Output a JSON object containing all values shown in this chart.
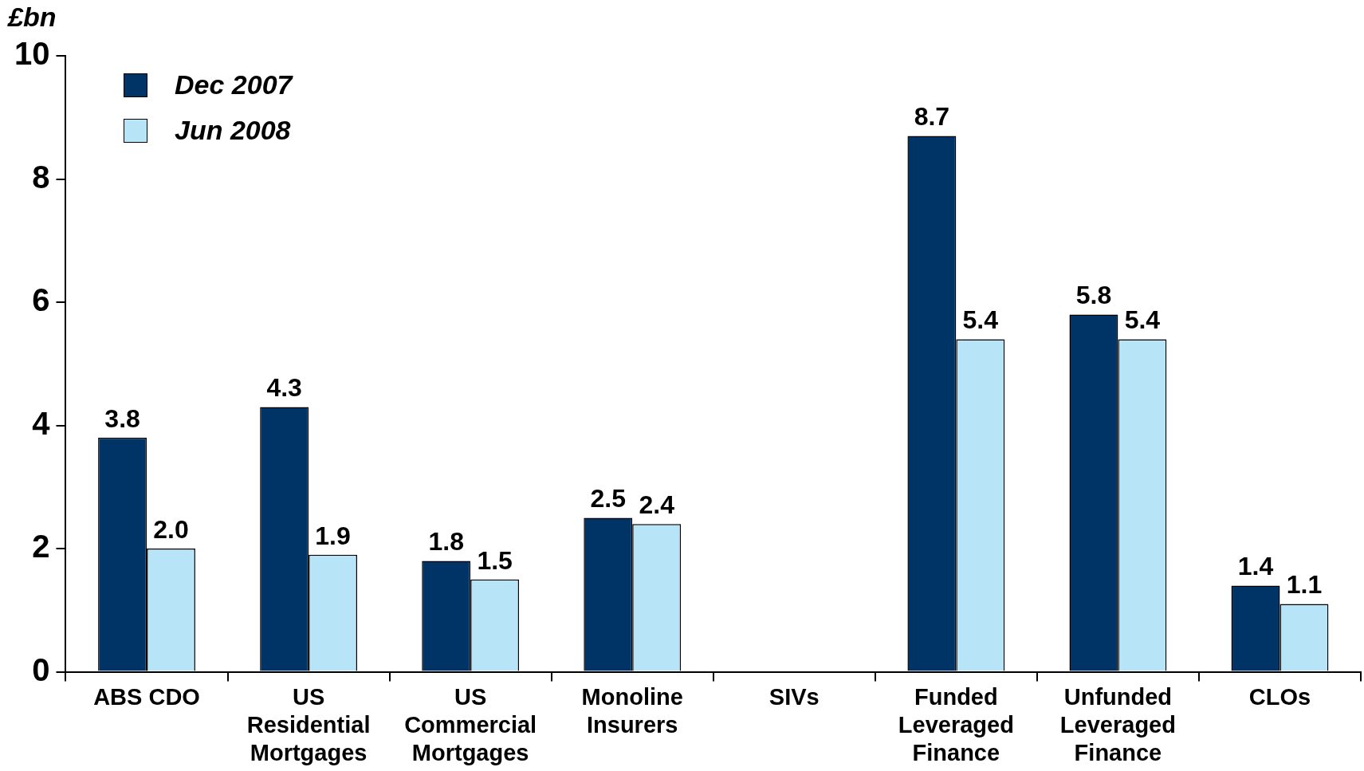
{
  "chart_data": {
    "type": "bar",
    "ylabel": "£bn",
    "categories": [
      "ABS CDO",
      "US\nResidential\nMortgages",
      "US\nCommercial\nMortgages",
      "Monoline\nInsurers",
      "SIVs",
      "Funded\nLeveraged\nFinance",
      "Unfunded\nLeveraged\nFinance",
      "CLOs"
    ],
    "series": [
      {
        "name": "Dec 2007",
        "color": "#003366",
        "values": [
          3.8,
          4.3,
          1.8,
          2.5,
          null,
          8.7,
          5.8,
          1.4
        ],
        "value_labels": [
          "3.8",
          "4.3",
          "1.8",
          "2.5",
          null,
          "8.7",
          "5.8",
          "1.4"
        ]
      },
      {
        "name": "Jun 2008",
        "color": "#b8e4f8",
        "values": [
          2.0,
          1.9,
          1.5,
          2.4,
          null,
          5.4,
          5.4,
          1.1
        ],
        "value_labels": [
          "2.0",
          "1.9",
          "1.5",
          "2.4",
          null,
          "5.4",
          "5.4",
          "1.1"
        ]
      }
    ],
    "ylim": [
      0,
      10
    ],
    "yticks": [
      0,
      2,
      4,
      6,
      8,
      10
    ],
    "grid": false,
    "legend": "top left"
  }
}
